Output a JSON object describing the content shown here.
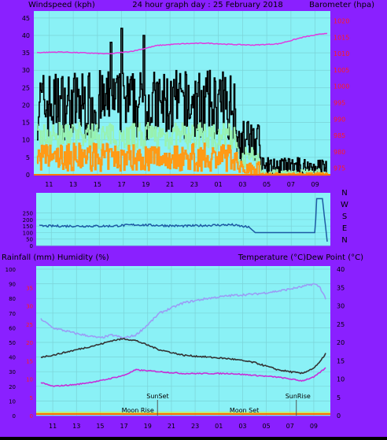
{
  "top_header": {
    "left": "Windspeed (kph)",
    "center": "24 hour graph day : 25 February 2018",
    "right": "Barometer (hpa)"
  },
  "compass_labels": [
    "N",
    "W",
    "S",
    "E",
    "N"
  ],
  "bottom_header": {
    "left": "Rainfall (mm)  Humidity (%)",
    "right": "Temperature (°C)Dew Point (°C)"
  },
  "colors": {
    "frame": "#8a20ff",
    "plot_bg": "#8af1f6",
    "grid": "#7bd2d7",
    "gust": "#000000",
    "avg_wind": "#98f2b0",
    "wind_low": "#ff9a16",
    "barometer": "#df3bdf",
    "direction": "#1d5aa3",
    "temperature": "#333333",
    "dewpoint": "#c630d8",
    "humidity": "#9a9df5",
    "rainfall": "#ff6a00",
    "red_axis": "#ff1e1e"
  },
  "chart_data": [
    {
      "type": "line",
      "x_ticks": [
        "11",
        "13",
        "15",
        "17",
        "19",
        "21",
        "23",
        "01",
        "03",
        "05",
        "07",
        "09"
      ],
      "yleft_ticks": [
        "0",
        "5",
        "10",
        "15",
        "20",
        "25",
        "30",
        "35",
        "40",
        "45"
      ],
      "yright_ticks": [
        "975",
        "980",
        "985",
        "990",
        "995",
        "1000",
        "1005",
        "1010",
        "1015",
        "1020"
      ],
      "ylim_left": [
        0,
        47
      ],
      "ylim_right": [
        973,
        1023
      ],
      "series": [
        {
          "name": "Barometer",
          "axis": "right",
          "t": [
            0,
            2,
            4,
            6,
            8,
            10,
            12,
            14,
            16,
            18,
            20,
            22,
            24
          ],
          "values": [
            1010.3,
            1010.5,
            1010.2,
            1009.9,
            1010.8,
            1012.5,
            1013.0,
            1013.2,
            1012.8,
            1012.6,
            1013.0,
            1015.0,
            1016.3
          ]
        }
      ],
      "wind_segments": [
        {
          "t_range": [
            0,
            16.5
          ],
          "gust_base": 20,
          "gust_amp": 10,
          "avg_base": 11,
          "avg_amp": 4,
          "low_base": 5,
          "low_amp": 4
        },
        {
          "t_range": [
            16.5,
            18.5
          ],
          "gust_base": 10,
          "gust_amp": 6,
          "avg_base": 5,
          "avg_amp": 3,
          "low_base": 2,
          "low_amp": 2
        },
        {
          "t_range": [
            18.5,
            24
          ],
          "gust_base": 2,
          "gust_amp": 3,
          "avg_base": 0.5,
          "avg_amp": 1,
          "low_base": 0,
          "low_amp": 0.5
        }
      ],
      "gust_peaks": [
        {
          "t": 6.1,
          "v": 38
        },
        {
          "t": 8.8,
          "v": 40
        },
        {
          "t": 7.0,
          "v": 42
        }
      ]
    },
    {
      "type": "line",
      "ylim": [
        0,
        405
      ],
      "y_ticks": [
        "0",
        "50",
        "100",
        "150",
        "200",
        "250"
      ],
      "direction_series": {
        "t": [
          0,
          6,
          8,
          12,
          14,
          16,
          17.5,
          18,
          22,
          23,
          23.1,
          23.6,
          24
        ],
        "values": [
          150,
          150,
          160,
          150,
          155,
          160,
          140,
          100,
          100,
          100,
          360,
          360,
          30
        ]
      }
    },
    {
      "type": "line",
      "x_ticks": [
        "11",
        "13",
        "15",
        "17",
        "19",
        "21",
        "23",
        "01",
        "03",
        "05",
        "07",
        "09"
      ],
      "yleft_ticks": [
        "0",
        "10",
        "20",
        "30",
        "40",
        "50",
        "60",
        "70",
        "80",
        "90",
        "100"
      ],
      "yred_ticks": [
        "0",
        "5",
        "10",
        "15",
        "20",
        "25",
        "30",
        "35"
      ],
      "yright_ticks": [
        "0",
        "5",
        "10",
        "15",
        "20",
        "25",
        "30",
        "35",
        "40"
      ],
      "ylim_left": [
        0,
        100
      ],
      "ylim_right": [
        0,
        40
      ],
      "series": [
        {
          "name": "Temperature",
          "axis": "right",
          "t": [
            0,
            1,
            3,
            5,
            6,
            7,
            8,
            10,
            12,
            14,
            16,
            18,
            20,
            21,
            22,
            23,
            23.5,
            24
          ],
          "values": [
            16,
            16.5,
            18,
            19.5,
            20.5,
            21,
            20.5,
            18,
            16.5,
            16,
            15.5,
            14.5,
            12.5,
            12,
            11.5,
            13,
            14.5,
            17
          ]
        },
        {
          "name": "Dew Point",
          "axis": "right",
          "t": [
            0,
            1,
            3,
            5,
            7,
            8,
            10,
            12,
            14,
            16,
            18,
            20,
            21,
            22,
            23,
            24
          ],
          "values": [
            9,
            8,
            8.5,
            9.5,
            11,
            12.5,
            12,
            11.5,
            11.5,
            11.5,
            11,
            10.5,
            10,
            9.5,
            10.5,
            13
          ]
        },
        {
          "name": "Humidity",
          "axis": "left",
          "t": [
            0,
            1,
            3,
            5,
            6,
            7,
            8,
            9,
            10,
            12,
            14,
            16,
            18,
            20,
            22,
            23,
            23.5,
            24
          ],
          "values": [
            66,
            60,
            56,
            53,
            55,
            53,
            55,
            62,
            70,
            77,
            80,
            82,
            83,
            85,
            88,
            90,
            88,
            80
          ]
        }
      ],
      "markers": [
        {
          "label": "Moon Rise",
          "t": 6.8
        },
        {
          "label": "SunSet",
          "t": 8.9
        },
        {
          "label": "Moon Set",
          "t": 15.9
        },
        {
          "label": "SunRise",
          "t": 20.6
        }
      ]
    }
  ]
}
